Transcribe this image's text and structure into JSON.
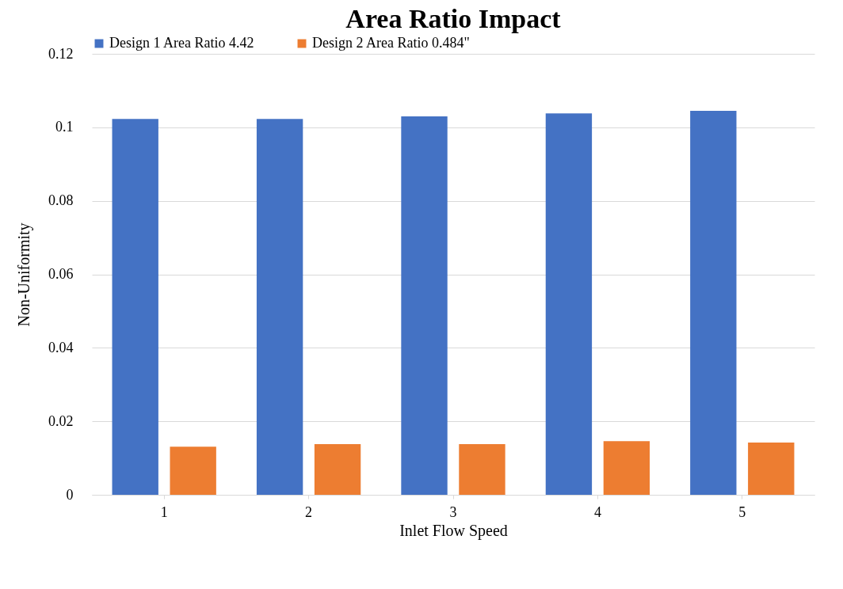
{
  "chart_data": {
    "type": "bar",
    "title": "Area Ratio Impact",
    "xlabel": "Inlet Flow Speed",
    "ylabel": "Non-Uniformity",
    "categories": [
      "1",
      "2",
      "3",
      "4",
      "5"
    ],
    "series": [
      {
        "name": "Design 1 Area Ratio 4.42",
        "color": "#4472c4",
        "values": [
          0.1023,
          0.1023,
          0.103,
          0.1038,
          0.1045
        ]
      },
      {
        "name": "Design 2 Area Ratio 0.484\"",
        "color": "#ed7d31",
        "values": [
          0.0131,
          0.0138,
          0.0138,
          0.0146,
          0.0142
        ]
      }
    ],
    "ylim": [
      0,
      0.12
    ],
    "yticks": [
      0,
      0.02,
      0.04,
      0.06,
      0.08,
      0.1,
      0.12
    ],
    "grid": "y",
    "legend": "top"
  }
}
